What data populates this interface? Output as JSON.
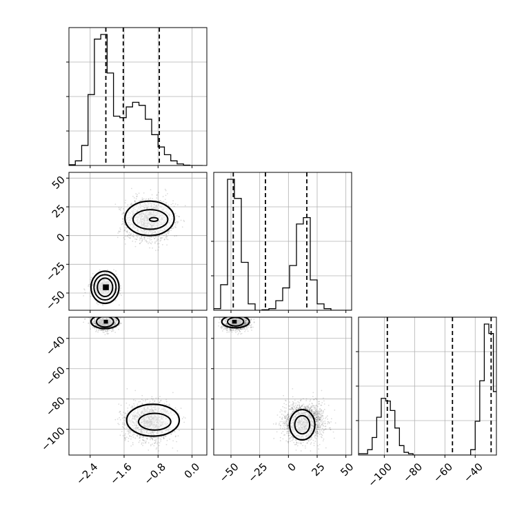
{
  "chart_data": {
    "type": "corner",
    "parameters": [
      {
        "range": [
          -2.9,
          0.35
        ],
        "ticks": [
          -2.4,
          -1.6,
          -0.8,
          0.0
        ],
        "tick_labels": [
          "−2.4",
          "−1.6",
          "−0.8",
          "0.0"
        ],
        "quantile_lines": [
          -2.03,
          -1.62,
          -0.77
        ],
        "histogram": {
          "bin_edges": [
            -2.9,
            -2.75,
            -2.6,
            -2.45,
            -2.3,
            -2.15,
            -2.0,
            -1.85,
            -1.7,
            -1.55,
            -1.4,
            -1.25,
            -1.1,
            -0.95,
            -0.8,
            -0.65,
            -0.5,
            -0.35,
            -0.2,
            -0.05,
            0.1,
            0.25
          ],
          "counts": [
            0.005,
            0.03,
            0.13,
            0.46,
            0.82,
            0.85,
            0.6,
            0.32,
            0.31,
            0.38,
            0.41,
            0.39,
            0.3,
            0.2,
            0.12,
            0.07,
            0.03,
            0.01,
            0.002,
            0.0,
            0.0
          ]
        }
      },
      {
        "range": [
          -65,
          55
        ],
        "ticks": [
          -50,
          -25,
          0,
          25,
          50
        ],
        "tick_labels": [
          "−50",
          "−25",
          "0",
          "25",
          "50"
        ],
        "quantile_lines": [
          -48,
          -20,
          16
        ],
        "histogram": {
          "bin_edges": [
            -65,
            -59,
            -53,
            -47,
            -41,
            -35,
            -29,
            -23,
            -17,
            -11,
            -5,
            1,
            7,
            13,
            19,
            25,
            31,
            37,
            43,
            49,
            55
          ],
          "counts": [
            0.01,
            0.16,
            0.82,
            0.7,
            0.3,
            0.04,
            0.0,
            0.003,
            0.01,
            0.06,
            0.14,
            0.28,
            0.54,
            0.58,
            0.19,
            0.04,
            0.01,
            0.0,
            0.0,
            0.0
          ]
        }
      },
      {
        "range": [
          -117,
          -26
        ],
        "ticks": [
          -100,
          -80,
          -60,
          -40
        ],
        "tick_labels": [
          "−100",
          "−80",
          "−60",
          "−40"
        ],
        "quantile_lines": [
          -98,
          -55,
          -29.5
        ],
        "histogram": {
          "bin_edges": [
            -117,
            -111,
            -108,
            -105,
            -102,
            -99,
            -96,
            -93,
            -90,
            -87,
            -84,
            -81,
            -78,
            -43,
            -40,
            -37,
            -34,
            -31,
            -28,
            -26
          ],
          "counts": [
            0.01,
            0.04,
            0.13,
            0.28,
            0.42,
            0.4,
            0.33,
            0.2,
            0.07,
            0.02,
            0.01,
            0.0,
            0.0,
            0.04,
            0.25,
            0.55,
            0.97,
            0.9,
            0.47
          ]
        }
      }
    ],
    "clusters": [
      {
        "x": -1.0,
        "y": 14,
        "z": -95,
        "sx": 0.28,
        "sy": 9,
        "sz": 6,
        "weight": 0.6
      },
      {
        "x": -2.05,
        "y": -45,
        "z": -30,
        "sx": 0.14,
        "sy": 5,
        "sz": 2.2,
        "weight": 0.4
      }
    ],
    "contours": {
      "p0_p1": [
        {
          "cx": -1.0,
          "cy": 15,
          "rx": 0.58,
          "ry": 15,
          "stroke": 2.2
        },
        {
          "cx": -0.98,
          "cy": 14,
          "rx": 0.41,
          "ry": 8.5,
          "stroke": 2.0
        },
        {
          "cx": -0.9,
          "cy": 14,
          "rx": 0.1,
          "ry": 1.6,
          "stroke": 2.0
        },
        {
          "cx": -2.05,
          "cy": -45,
          "rx": 0.33,
          "ry": 14,
          "stroke": 2.2
        },
        {
          "cx": -2.05,
          "cy": -45,
          "rx": 0.26,
          "ry": 11,
          "stroke": 2.0
        },
        {
          "cx": -2.05,
          "cy": -45,
          "rx": 0.18,
          "ry": 8,
          "stroke": 2.0
        }
      ],
      "p0_p2": [
        {
          "cx": -0.92,
          "cy": -94,
          "rx": 0.62,
          "ry": 10.5,
          "stroke": 2.2
        },
        {
          "cx": -0.88,
          "cy": -95,
          "rx": 0.38,
          "ry": 5.5,
          "stroke": 2.0
        },
        {
          "cx": -2.05,
          "cy": -29,
          "rx": 0.33,
          "ry": 4.5,
          "stroke": 2.2
        },
        {
          "cx": -2.05,
          "cy": -29,
          "rx": 0.2,
          "ry": 3.5,
          "stroke": 2.0
        }
      ],
      "p1_p2": [
        {
          "cx": 12,
          "cy": -97,
          "rx": 11,
          "ry": 10,
          "stroke": 2.2
        },
        {
          "cx": 12,
          "cy": -97,
          "rx": 6.5,
          "ry": 6,
          "stroke": 2.0
        },
        {
          "cx": -46,
          "cy": -29,
          "rx": 12,
          "ry": 4,
          "stroke": 2.2
        },
        {
          "cx": -46,
          "cy": -29,
          "rx": 7,
          "ry": 2.8,
          "stroke": 2.0
        }
      ]
    },
    "peaks": {
      "p0_p1": [
        {
          "x": -2.03,
          "y": -45,
          "w": 0.14,
          "h": 5
        }
      ],
      "p0_p2": [
        {
          "x": -2.03,
          "y": -29,
          "w": 0.1,
          "h": 2.5
        }
      ],
      "p1_p2": [
        {
          "x": -47,
          "y": -29,
          "w": 4,
          "h": 2.5
        }
      ]
    },
    "grid": true,
    "colors": {
      "hist": "#000000",
      "points": "#333333",
      "contour": "#000000",
      "grid": "#b0b0b0"
    }
  }
}
